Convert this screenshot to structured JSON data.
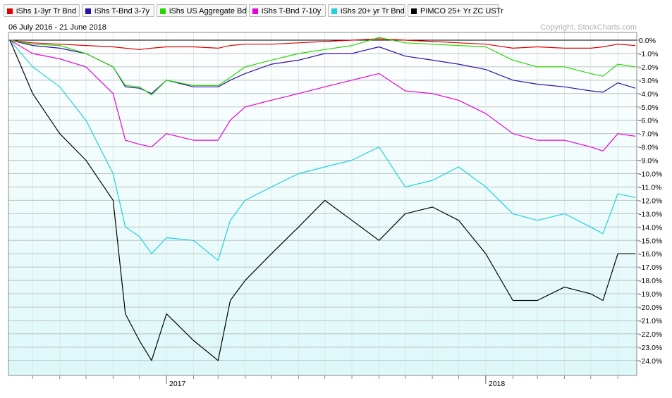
{
  "legend": [
    {
      "label": "iShs 1-3yr Tr Bnd",
      "color": "#e00000"
    },
    {
      "label": "iShs T-Bnd 3-7y",
      "color": "#2b0fa8"
    },
    {
      "label": "iShs US Aggregate Bd",
      "color": "#28d800"
    },
    {
      "label": "iShs T-Bnd 7-10y",
      "color": "#e600e0"
    },
    {
      "label": "iShs 20+ yr Tr Bnd",
      "color": "#20d0e0"
    },
    {
      "label": "PIMCO 25+ Yr ZC USTr",
      "color": "#000000"
    }
  ],
  "header": {
    "date_range": "06 July 2016 - 21 June 2018",
    "copyright": "Copyright, StockCharts.com"
  },
  "chart_data": {
    "type": "line",
    "title": "",
    "xlabel": "",
    "ylabel": "",
    "ylim": [
      -24.5,
      0.5
    ],
    "y_ticks": [
      "0.0%",
      "-1.0%",
      "-2.0%",
      "-3.0%",
      "-4.0%",
      "-5.0%",
      "-6.0%",
      "-7.0%",
      "-8.0%",
      "-9.0%",
      "-10.0%",
      "-11.0%",
      "-12.0%",
      "-13.0%",
      "-14.0%",
      "-15.0%",
      "-16.0%",
      "-17.0%",
      "-18.0%",
      "-19.0%",
      "-20.0%",
      "-21.0%",
      "-22.0%",
      "-23.0%",
      "-24.0%"
    ],
    "x_ticks": [
      {
        "label": "2017",
        "date": "2017-01-01"
      },
      {
        "label": "2018",
        "date": "2018-01-01"
      }
    ],
    "x": [
      "2016-07-06",
      "2016-08-01",
      "2016-09-01",
      "2016-10-01",
      "2016-11-01",
      "2016-11-15",
      "2016-12-01",
      "2016-12-15",
      "2017-01-01",
      "2017-02-01",
      "2017-03-01",
      "2017-03-15",
      "2017-04-01",
      "2017-05-01",
      "2017-06-01",
      "2017-07-01",
      "2017-08-01",
      "2017-09-01",
      "2017-10-01",
      "2017-11-01",
      "2017-12-01",
      "2018-01-01",
      "2018-02-01",
      "2018-03-01",
      "2018-04-01",
      "2018-05-01",
      "2018-05-15",
      "2018-06-01",
      "2018-06-21"
    ],
    "series": [
      {
        "name": "iShs 1-3yr Tr Bnd",
        "color": "#e00000",
        "values": [
          0.0,
          -0.2,
          -0.3,
          -0.4,
          -0.5,
          -0.6,
          -0.7,
          -0.6,
          -0.5,
          -0.5,
          -0.6,
          -0.4,
          -0.3,
          -0.3,
          -0.2,
          -0.1,
          0.0,
          0.1,
          0.0,
          -0.1,
          -0.2,
          -0.3,
          -0.6,
          -0.5,
          -0.6,
          -0.6,
          -0.5,
          -0.3,
          -0.4
        ]
      },
      {
        "name": "iShs T-Bnd 3-7y",
        "color": "#2b0fa8",
        "values": [
          0.0,
          -0.4,
          -0.6,
          -1.0,
          -2.0,
          -3.5,
          -3.6,
          -4.0,
          -3.0,
          -3.5,
          -3.5,
          -3.0,
          -2.5,
          -1.8,
          -1.5,
          -1.0,
          -1.0,
          -0.5,
          -1.2,
          -1.5,
          -1.8,
          -2.2,
          -3.0,
          -3.3,
          -3.5,
          -3.8,
          -3.9,
          -3.2,
          -3.6
        ]
      },
      {
        "name": "iShs US Aggregate Bd",
        "color": "#28d800",
        "values": [
          0.0,
          -0.3,
          -0.4,
          -1.0,
          -2.0,
          -3.4,
          -3.5,
          -4.1,
          -3.0,
          -3.4,
          -3.4,
          -2.8,
          -2.0,
          -1.5,
          -1.0,
          -0.7,
          -0.4,
          0.2,
          -0.2,
          -0.3,
          -0.4,
          -0.5,
          -1.5,
          -2.0,
          -2.0,
          -2.5,
          -2.7,
          -1.8,
          -2.0
        ]
      },
      {
        "name": "iShs T-Bnd 7-10y",
        "color": "#e600e0",
        "values": [
          0.0,
          -1.0,
          -1.4,
          -2.0,
          -4.0,
          -7.5,
          -7.8,
          -8.0,
          -7.0,
          -7.5,
          -7.5,
          -6.0,
          -5.0,
          -4.5,
          -4.0,
          -3.5,
          -3.0,
          -2.5,
          -3.8,
          -4.0,
          -4.5,
          -5.5,
          -7.0,
          -7.5,
          -7.5,
          -8.0,
          -8.3,
          -7.0,
          -7.2
        ]
      },
      {
        "name": "iShs 20+ yr Tr Bnd",
        "color": "#20d0e0",
        "values": [
          0.0,
          -2.0,
          -3.5,
          -6.0,
          -10.0,
          -14.0,
          -14.7,
          -16.0,
          -14.8,
          -15.0,
          -16.5,
          -13.5,
          -12.0,
          -11.0,
          -10.0,
          -9.5,
          -9.0,
          -8.0,
          -11.0,
          -10.5,
          -9.5,
          -11.0,
          -13.0,
          -13.5,
          -13.0,
          -14.0,
          -14.5,
          -11.5,
          -11.8
        ]
      },
      {
        "name": "PIMCO 25+ Yr ZC USTr",
        "color": "#000000",
        "values": [
          0.0,
          -4.0,
          -7.0,
          -9.0,
          -12.0,
          -20.5,
          -22.5,
          -24.0,
          -20.5,
          -22.5,
          -24.0,
          -19.5,
          -18.0,
          -16.0,
          -14.0,
          -12.0,
          -13.5,
          -15.0,
          -13.0,
          -12.5,
          -13.5,
          -16.0,
          -19.5,
          -19.5,
          -18.5,
          -19.0,
          -19.5,
          -16.0,
          -16.0
        ]
      }
    ]
  }
}
